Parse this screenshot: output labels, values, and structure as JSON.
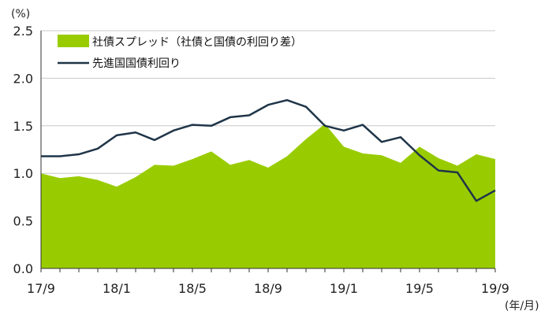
{
  "chart_data": {
    "type": "area",
    "unit_label": "(%)",
    "x_unit_label": "(年/月)",
    "x": [
      "17/9",
      "17/10",
      "17/11",
      "17/12",
      "18/1",
      "18/2",
      "18/3",
      "18/4",
      "18/5",
      "18/6",
      "18/7",
      "18/8",
      "18/9",
      "18/10",
      "18/11",
      "18/12",
      "19/1",
      "19/2",
      "19/3",
      "19/4",
      "19/5",
      "19/6",
      "19/7",
      "19/8",
      "19/9"
    ],
    "x_tick_labels": [
      "17/9",
      "18/1",
      "18/5",
      "18/9",
      "19/1",
      "19/5",
      "19/9"
    ],
    "ylim": [
      0,
      2.5
    ],
    "y_ticks": [
      "0.0",
      "0.5",
      "1.0",
      "1.5",
      "2.0",
      "2.5"
    ],
    "grid": true,
    "legend_position": "top-left",
    "series": [
      {
        "name": "社債スプレッド（社債と国債の利回り差）",
        "type": "area",
        "color": "#99cc00",
        "values": [
          1.0,
          0.95,
          0.97,
          0.93,
          0.86,
          0.96,
          1.09,
          1.08,
          1.15,
          1.23,
          1.09,
          1.14,
          1.06,
          1.18,
          1.36,
          1.52,
          1.28,
          1.21,
          1.19,
          1.11,
          1.28,
          1.16,
          1.08,
          1.2,
          1.15
        ]
      },
      {
        "name": "先進国国債利回り",
        "type": "line",
        "color": "#1f3548",
        "values": [
          1.18,
          1.18,
          1.2,
          1.26,
          1.4,
          1.43,
          1.35,
          1.45,
          1.51,
          1.5,
          1.59,
          1.61,
          1.72,
          1.77,
          1.7,
          1.5,
          1.45,
          1.51,
          1.33,
          1.38,
          1.19,
          1.03,
          1.01,
          0.71,
          0.82
        ]
      }
    ]
  }
}
